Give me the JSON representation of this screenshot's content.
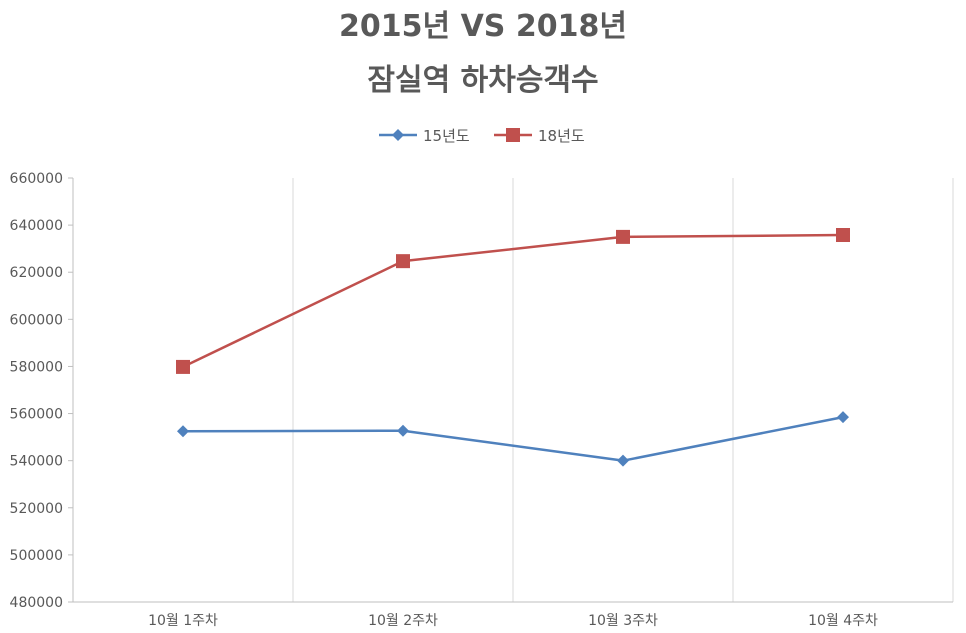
{
  "chart_data": {
    "type": "line",
    "title_lines": [
      "2015년 VS 2018년",
      "잠실역 하차승객수"
    ],
    "categories": [
      "10월 1주차",
      "10월 2주차",
      "10월 3주차",
      "10월 4주차"
    ],
    "series": [
      {
        "name": "15년도",
        "color": "#4f81bd",
        "marker": "diamond",
        "values": [
          552500,
          552700,
          540000,
          558500
        ]
      },
      {
        "name": "18년도",
        "color": "#c0504d",
        "marker": "square",
        "values": [
          579800,
          624700,
          635000,
          635800
        ]
      }
    ],
    "ylim": [
      480000,
      660000
    ],
    "yticks": [
      480000,
      500000,
      520000,
      540000,
      560000,
      580000,
      600000,
      620000,
      640000,
      660000
    ],
    "grid": "vertical",
    "legend_position": "top"
  }
}
